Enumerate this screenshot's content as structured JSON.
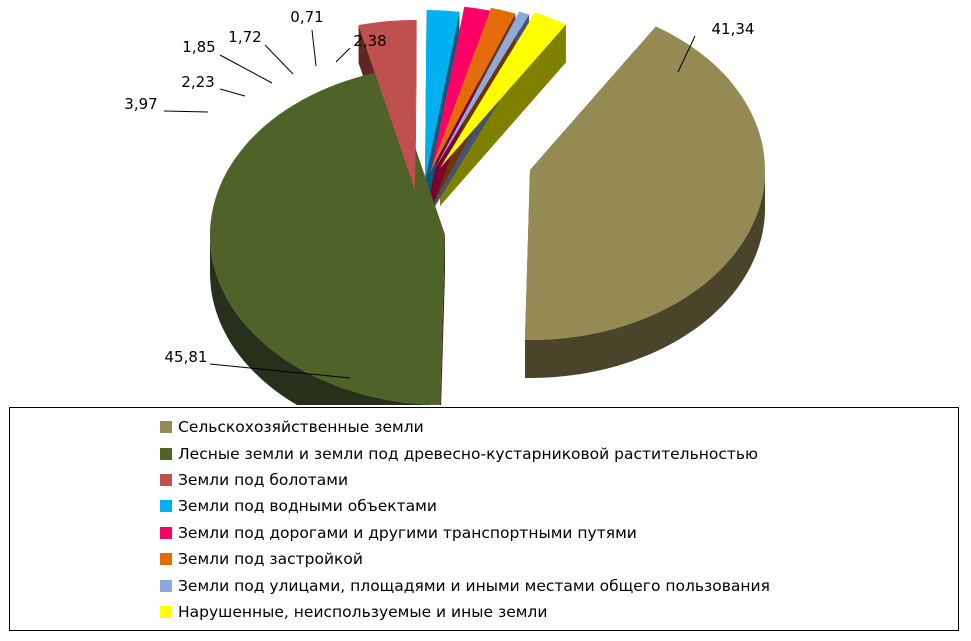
{
  "chart_data": {
    "type": "pie",
    "style": "3d-exploded",
    "title": "",
    "decimal_separator": ",",
    "legend_position": "bottom",
    "series": [
      {
        "label": "Сельскохозяйственные земли",
        "value": 41.34,
        "value_label": "41,34",
        "color": "#948A54",
        "side": "#4A452A"
      },
      {
        "label": "Лесные земли и земли под древесно-кустарниковой растительностью",
        "value": 45.81,
        "value_label": "45,81",
        "color": "#4F6228",
        "side": "#26301A"
      },
      {
        "label": "Земли под болотами",
        "value": 3.97,
        "value_label": "3,97",
        "color": "#C0504D",
        "side": "#632523"
      },
      {
        "label": "Земли под водными объектами",
        "value": 2.23,
        "value_label": "2,23",
        "color": "#00B0F0",
        "side": "#005C7D"
      },
      {
        "label": "Земли под дорогами и другими транспортными путями",
        "value": 1.85,
        "value_label": "1,85",
        "color": "#FF0066",
        "side": "#7A0030"
      },
      {
        "label": "Земли под застройкой",
        "value": 1.72,
        "value_label": "1,72",
        "color": "#E46C0A",
        "side": "#6E3405"
      },
      {
        "label": "Земли под улицами, площадями и иными местами общего пользования",
        "value": 0.71,
        "value_label": "0,71",
        "color": "#8EA9DB",
        "side": "#46536D"
      },
      {
        "label": "Нарушенные, неиспользуемые и иные земли",
        "value": 2.38,
        "value_label": "2,38",
        "color": "#FFFF00",
        "side": "#7F7F00"
      }
    ]
  }
}
